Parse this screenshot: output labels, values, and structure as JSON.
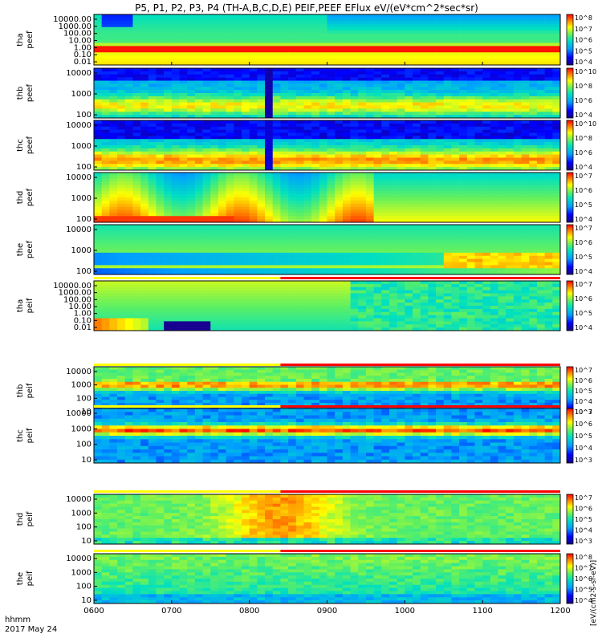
{
  "title": "P5, P1, P2, P3, P4 (TH-A,B,C,D,E) PEIF,PEEF EFlux eV/(eV*cm^2*sec*sr)",
  "footer": {
    "time_label": "hhmm",
    "date_label": "2017 May 24"
  },
  "colorbar_title": "[eV/(cm2-s-sr-eV)]",
  "chart_data": [
    {
      "type": "heatmap",
      "probe": "tha",
      "quantity": "peef",
      "ylabels": [
        "tha",
        "peef"
      ],
      "yticks": [
        "10000.00",
        "1000.00",
        "100.00",
        "10.00",
        "1.00",
        "0.10",
        "0.01"
      ],
      "cbar_ticks": [
        "10^8",
        "10^7",
        "10^6",
        "10^5",
        "10^4"
      ],
      "xticks": [
        "0600",
        "0700",
        "0800",
        "0900",
        "1000",
        "1100",
        "1200"
      ]
    },
    {
      "type": "heatmap",
      "probe": "thb",
      "quantity": "peef",
      "ylabels": [
        "thb",
        "peef"
      ],
      "yticks": [
        "10000",
        "1000",
        "100"
      ],
      "cbar_ticks": [
        "10^10",
        "10^8",
        "10^6",
        "10^4"
      ]
    },
    {
      "type": "heatmap",
      "probe": "thc",
      "quantity": "peef",
      "ylabels": [
        "thc",
        "peef"
      ],
      "yticks": [
        "10000",
        "1000",
        "100"
      ],
      "cbar_ticks": [
        "10^10",
        "10^8",
        "10^6",
        "10^4"
      ]
    },
    {
      "type": "heatmap",
      "probe": "thd",
      "quantity": "peef",
      "ylabels": [
        "thd",
        "peef"
      ],
      "yticks": [
        "10000",
        "1000",
        "100"
      ],
      "cbar_ticks": [
        "10^7",
        "10^6",
        "10^5",
        "10^4"
      ]
    },
    {
      "type": "heatmap",
      "probe": "the",
      "quantity": "peef",
      "ylabels": [
        "the",
        "peef"
      ],
      "yticks": [
        "10000",
        "1000",
        "100"
      ],
      "cbar_ticks": [
        "10^7",
        "10^6",
        "10^5",
        "10^4"
      ]
    },
    {
      "type": "heatmap",
      "probe": "tha",
      "quantity": "peif",
      "ylabels": [
        "tha",
        "peif"
      ],
      "yticks": [
        "10000.00",
        "1000.00",
        "100.00",
        "10.00",
        "1.00",
        "0.10",
        "0.01"
      ],
      "cbar_ticks": [
        "10^7",
        "10^6",
        "10^5",
        "10^4"
      ]
    },
    {
      "type": "heatmap",
      "probe": "thb",
      "quantity": "peif",
      "ylabels": [
        "thb",
        "peif"
      ],
      "yticks": [
        "10000",
        "1000",
        "100",
        "10"
      ],
      "cbar_ticks": [
        "10^7",
        "10^6",
        "10^5",
        "10^4",
        "10^3"
      ]
    },
    {
      "type": "heatmap",
      "probe": "thc",
      "quantity": "peif",
      "ylabels": [
        "thc",
        "peif"
      ],
      "yticks": [
        "10000",
        "1000",
        "100",
        "10"
      ],
      "cbar_ticks": [
        "10^7",
        "10^6",
        "10^5",
        "10^4",
        "10^3"
      ]
    },
    {
      "type": "heatmap",
      "probe": "thd",
      "quantity": "peif",
      "ylabels": [
        "thd",
        "peif"
      ],
      "yticks": [
        "10000",
        "1000",
        "100",
        "10"
      ],
      "cbar_ticks": [
        "10^7",
        "10^6",
        "10^5",
        "10^4",
        "10^3"
      ]
    },
    {
      "type": "heatmap",
      "probe": "the",
      "quantity": "peif",
      "ylabels": [
        "the",
        "peif"
      ],
      "yticks": [
        "10000",
        "1000",
        "100",
        "10"
      ],
      "cbar_ticks": [
        "10^8",
        "10^7",
        "10^6",
        "10^5",
        "10^4"
      ],
      "xticks": [
        "0600",
        "0700",
        "0800",
        "0900",
        "1000",
        "1100",
        "1200"
      ]
    }
  ]
}
